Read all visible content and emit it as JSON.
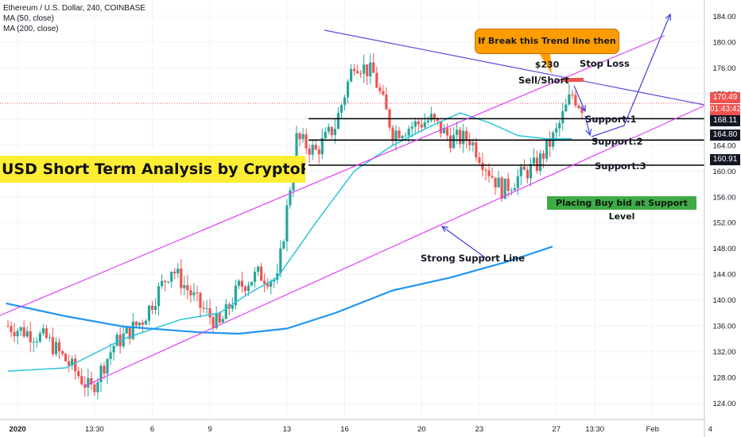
{
  "chart_data": {
    "type": "candlestick",
    "title": "Ethereum / U.S. Dollar, 240, COINBASE",
    "indicators": [
      {
        "name": "MA (50, close)",
        "color": "#26c6da"
      },
      {
        "name": "MA (200, close)",
        "color": "#2196f3"
      }
    ],
    "y_ticks": [
      124,
      128,
      132,
      136,
      140,
      144,
      148,
      152,
      156,
      160,
      164,
      168,
      172,
      176,
      180,
      184
    ],
    "ylim": [
      121.5,
      186.5
    ],
    "x_ticks": [
      "2020",
      "13:30",
      "6",
      "9",
      "13",
      "16",
      "20",
      "23",
      "27",
      "13:30",
      "Feb",
      "4"
    ],
    "x_tick_positions": [
      0.5,
      4.5,
      7.5,
      10.5,
      14.5,
      17.5,
      21.5,
      24.5,
      28.5,
      30.5,
      33.5,
      36.5
    ],
    "candles_summary": {
      "path_points": [
        [
          0,
          136
        ],
        [
          2,
          134
        ],
        [
          3.5,
          129
        ],
        [
          4.3,
          126
        ],
        [
          5.5,
          133
        ],
        [
          7,
          137
        ],
        [
          8.5,
          145
        ],
        [
          10,
          139
        ],
        [
          11,
          136
        ],
        [
          12,
          142
        ],
        [
          13,
          144
        ],
        [
          14,
          143
        ],
        [
          15,
          165
        ],
        [
          16,
          163
        ],
        [
          17,
          167
        ],
        [
          18,
          177
        ],
        [
          19,
          175
        ],
        [
          20,
          166
        ],
        [
          21,
          167
        ],
        [
          22,
          168
        ],
        [
          23,
          165
        ],
        [
          24,
          165
        ],
        [
          25,
          160
        ],
        [
          25.7,
          157
        ],
        [
          26.5,
          159
        ],
        [
          27.5,
          161
        ],
        [
          28.5,
          166
        ],
        [
          29.3,
          172
        ],
        [
          29.8,
          170
        ]
      ]
    },
    "current_price": "170.49",
    "countdown": "01:43:42",
    "price_labels": [
      {
        "value": "168.11",
        "price": 168.11,
        "style": "dark"
      },
      {
        "value": "164.80",
        "price": 164.8,
        "style": "dark"
      },
      {
        "value": "160.91",
        "price": 160.91,
        "style": "dark"
      }
    ],
    "ma50_points": [
      [
        0,
        129
      ],
      [
        3,
        129.5
      ],
      [
        6,
        134
      ],
      [
        9,
        137
      ],
      [
        11,
        138
      ],
      [
        12.5,
        141
      ],
      [
        14,
        143.5
      ],
      [
        16,
        152
      ],
      [
        18,
        160
      ],
      [
        20,
        164
      ],
      [
        22,
        167
      ],
      [
        23.5,
        169
      ],
      [
        25,
        167.5
      ],
      [
        26.5,
        165.5
      ],
      [
        28,
        165
      ],
      [
        29.3,
        165
      ]
    ],
    "ma200_points": [
      [
        -0.1,
        139.5
      ],
      [
        3,
        137.5
      ],
      [
        6,
        135.9
      ],
      [
        10,
        135
      ],
      [
        12,
        134.8
      ],
      [
        14.5,
        135.6
      ],
      [
        17,
        138
      ],
      [
        20,
        141.5
      ],
      [
        23,
        143.5
      ],
      [
        26,
        146
      ],
      [
        28.3,
        148.3
      ]
    ],
    "support_levels": [
      {
        "label": "Support:1",
        "price": 168.11
      },
      {
        "label": "Support:2",
        "price": 164.8
      },
      {
        "label": "Support:3",
        "price": 160.91
      }
    ],
    "annotations": {
      "banner": "USD Short Term Analysis by CryptoPatel",
      "callout": "If Break this Trend line then $230",
      "stop_loss": "Stop Loss",
      "sell_short": "Sell/Short",
      "buy_note": "Placing Buy bid at Support Level",
      "support_line": "Strong Support Line"
    },
    "colors": {
      "up": "#26a69a",
      "down": "#ef5350",
      "channel": "#e040fb",
      "trendline": "#5a4fe0",
      "support": "#000000",
      "arrow": "#4040e0",
      "price_line": "#ef5350"
    }
  }
}
